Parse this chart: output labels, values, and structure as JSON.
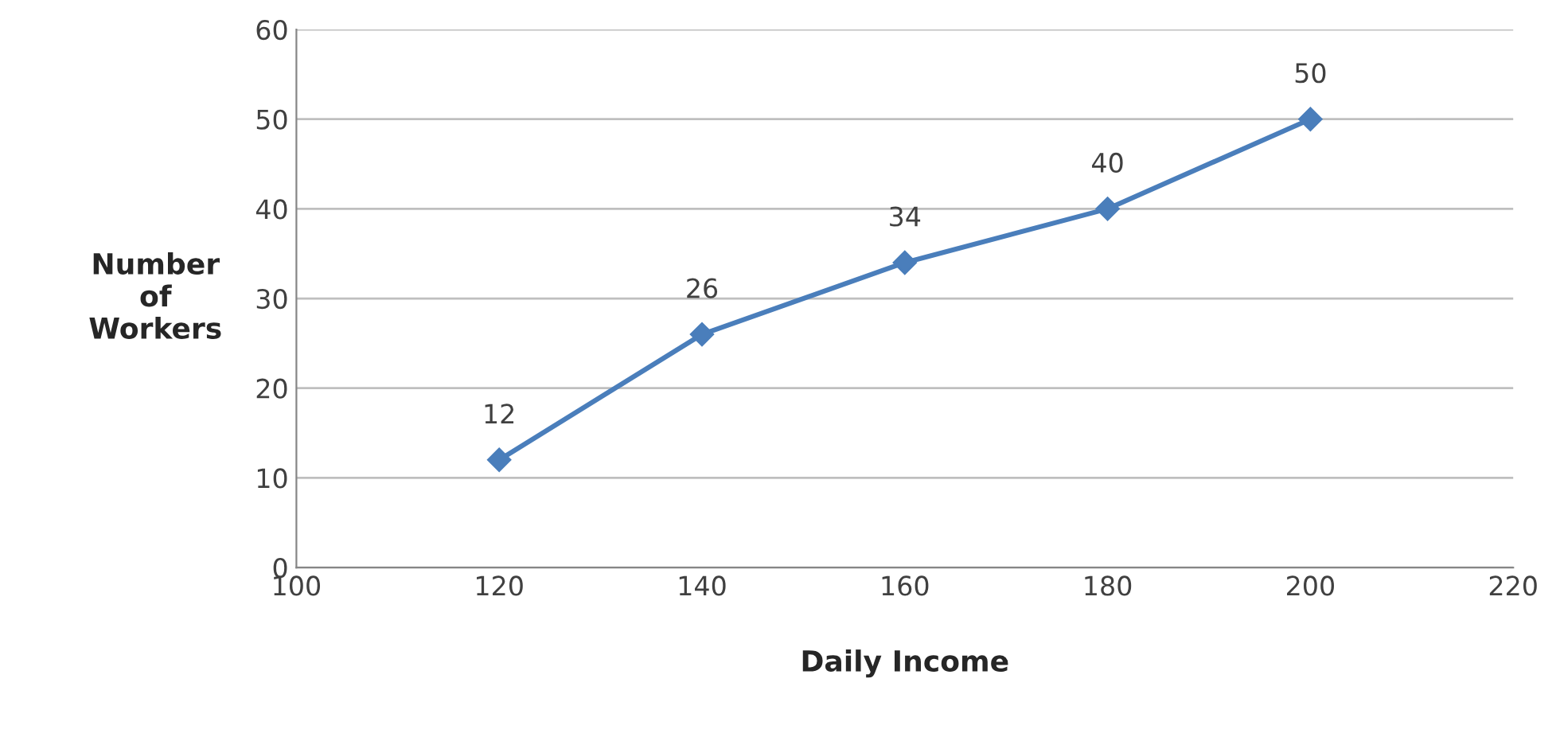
{
  "chart_data": {
    "type": "line",
    "xlabel": "Daily Income",
    "ylabel": "Number\nof\nWorkers",
    "x": [
      120,
      140,
      160,
      180,
      200
    ],
    "series": [
      {
        "color": "#4a7ebb",
        "values": [
          12,
          26,
          34,
          40,
          50
        ]
      }
    ],
    "xlim": [
      100,
      220
    ],
    "xticks": [
      100,
      120,
      140,
      160,
      180,
      200,
      220
    ],
    "ylim": [
      0,
      60
    ],
    "yticks": [
      0,
      10,
      20,
      30,
      40,
      50,
      60
    ],
    "grid": "y",
    "marker": "diamond",
    "line_style": "solid",
    "data_labels": true
  }
}
